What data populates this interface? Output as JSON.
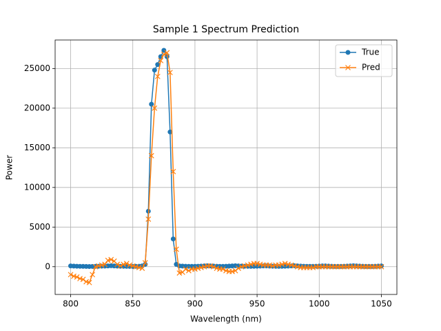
{
  "chart_data": {
    "type": "line",
    "title": "Sample 1 Spectrum Prediction",
    "xlabel": "Wavelength (nm)",
    "ylabel": "Power",
    "x": [
      800,
      802.5,
      805,
      807.5,
      810,
      812.5,
      815,
      817.5,
      820,
      822.5,
      825,
      827.5,
      830,
      832.5,
      835,
      837.5,
      840,
      842.5,
      845,
      847.5,
      850,
      852.5,
      855,
      857.5,
      860,
      862.5,
      865,
      867.5,
      870,
      872.5,
      875,
      877.5,
      880,
      882.5,
      885,
      887.5,
      890,
      892.5,
      895,
      897.5,
      900,
      902.5,
      905,
      907.5,
      910,
      912.5,
      915,
      917.5,
      920,
      922.5,
      925,
      927.5,
      930,
      932.5,
      935,
      937.5,
      940,
      942.5,
      945,
      947.5,
      950,
      952.5,
      955,
      957.5,
      960,
      962.5,
      965,
      967.5,
      970,
      972.5,
      975,
      977.5,
      980,
      982.5,
      985,
      987.5,
      990,
      992.5,
      995,
      997.5,
      1000,
      1002.5,
      1005,
      1007.5,
      1010,
      1012.5,
      1015,
      1017.5,
      1020,
      1022.5,
      1025,
      1027.5,
      1030,
      1032.5,
      1035,
      1037.5,
      1040,
      1042.5,
      1045,
      1047.5,
      1050
    ],
    "series": [
      {
        "name": "True",
        "color": "#1f77b4",
        "marker": "o",
        "values": [
          100,
          80,
          60,
          50,
          40,
          30,
          20,
          30,
          50,
          60,
          70,
          80,
          100,
          120,
          100,
          80,
          60,
          50,
          40,
          30,
          30,
          40,
          60,
          100,
          300,
          7000,
          20500,
          24800,
          25500,
          26500,
          27300,
          26500,
          17000,
          3500,
          300,
          100,
          80,
          60,
          50,
          40,
          50,
          60,
          80,
          100,
          120,
          100,
          80,
          60,
          50,
          40,
          60,
          80,
          100,
          120,
          100,
          80,
          60,
          50,
          40,
          50,
          60,
          80,
          100,
          100,
          80,
          60,
          50,
          40,
          50,
          60,
          80,
          100,
          120,
          100,
          80,
          60,
          50,
          40,
          50,
          60,
          80,
          100,
          100,
          80,
          60,
          50,
          40,
          50,
          60,
          80,
          100,
          120,
          100,
          80,
          60,
          50,
          40,
          50,
          60,
          80,
          100
        ]
      },
      {
        "name": "Pred",
        "color": "#ff7f0e",
        "marker": "x",
        "values": [
          -1000,
          -1200,
          -1300,
          -1500,
          -1600,
          -1900,
          -2000,
          -1000,
          0,
          100,
          200,
          300,
          800,
          900,
          700,
          300,
          100,
          300,
          400,
          200,
          100,
          0,
          -100,
          -200,
          500,
          6000,
          14000,
          20000,
          24000,
          26000,
          26800,
          27000,
          24500,
          12000,
          2200,
          -800,
          -700,
          -300,
          -500,
          -300,
          -300,
          -200,
          -100,
          0,
          100,
          100,
          0,
          -200,
          -300,
          -300,
          -500,
          -600,
          -600,
          -500,
          -200,
          0,
          100,
          200,
          300,
          400,
          400,
          300,
          200,
          200,
          200,
          100,
          200,
          200,
          300,
          400,
          300,
          200,
          100,
          0,
          -100,
          -100,
          -100,
          -100,
          -100,
          0,
          0,
          0,
          0,
          0,
          0,
          0,
          0,
          0,
          0,
          0,
          0,
          0,
          0,
          0,
          0,
          0,
          0,
          0,
          0,
          0,
          0
        ]
      }
    ],
    "xlim": [
      787.5,
      1062.5
    ],
    "ylim": [
      -3500,
      28600
    ],
    "xticks": [
      800,
      850,
      900,
      950,
      1000,
      1050
    ],
    "yticks": [
      0,
      5000,
      10000,
      15000,
      20000,
      25000
    ],
    "grid": true,
    "legend": "upper right"
  }
}
